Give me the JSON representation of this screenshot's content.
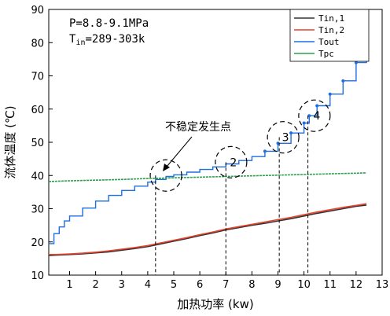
{
  "chart_data": {
    "type": "line",
    "xlabel": "加热功率 (kw)",
    "ylabel": "流体温度 (℃)",
    "xlim": [
      0.2,
      13
    ],
    "ylim": [
      10,
      90
    ],
    "xticks": [
      1,
      2,
      3,
      4,
      5,
      6,
      7,
      8,
      9,
      10,
      11,
      12,
      13
    ],
    "yticks": [
      10,
      20,
      30,
      40,
      50,
      60,
      70,
      80,
      90
    ],
    "conditions": {
      "pressure": "P=8.8-9.1MPa",
      "tin_prefix": "T",
      "tin_sub": "in",
      "tin_range": "=289-303k"
    },
    "legend_position": "top-right",
    "series": [
      {
        "name": "Tin,1",
        "color": "#333333",
        "x": [
          0.2,
          0.5,
          1,
          1.5,
          2,
          2.5,
          3,
          3.5,
          4,
          4.5,
          5,
          5.5,
          6,
          6.5,
          7,
          7.5,
          8,
          8.5,
          9,
          9.5,
          10,
          10.5,
          11,
          11.5,
          12,
          12.4
        ],
        "y": [
          15.9,
          16.0,
          16.2,
          16.4,
          16.7,
          17.0,
          17.5,
          18.0,
          18.6,
          19.4,
          20.2,
          21.0,
          21.9,
          22.7,
          23.6,
          24.3,
          25.0,
          25.6,
          26.3,
          27.0,
          27.8,
          28.6,
          29.3,
          30.0,
          30.7,
          31.1
        ]
      },
      {
        "name": "Tin,2",
        "color": "#e8412c",
        "x": [
          0.2,
          0.5,
          1,
          1.5,
          2,
          2.5,
          3,
          3.5,
          4,
          4.5,
          5,
          5.5,
          6,
          6.5,
          7,
          7.5,
          8,
          8.5,
          9,
          9.5,
          10,
          10.5,
          11,
          11.5,
          12,
          12.4
        ],
        "y": [
          16.2,
          16.2,
          16.4,
          16.6,
          16.9,
          17.3,
          17.8,
          18.3,
          18.9,
          19.7,
          20.5,
          21.3,
          22.2,
          23.0,
          23.9,
          24.6,
          25.3,
          26.0,
          26.7,
          27.4,
          28.2,
          29.0,
          29.7,
          30.4,
          31.0,
          31.5
        ]
      },
      {
        "name": "Tout",
        "color": "#1f6fe0",
        "x": [
          0.2,
          0.4,
          0.6,
          0.8,
          1,
          1.5,
          2,
          2.5,
          3,
          3.5,
          4,
          4.3,
          4.7,
          5,
          5.5,
          6,
          6.5,
          7,
          7.5,
          8,
          8.5,
          9,
          9.5,
          10,
          10.2,
          10.5,
          11,
          11.5,
          12,
          12.4
        ],
        "y": [
          19.5,
          22.5,
          24.5,
          26.3,
          27.8,
          30.2,
          32.3,
          34.0,
          35.5,
          36.8,
          38.0,
          38.8,
          39.7,
          40.2,
          41.0,
          41.8,
          42.6,
          43.5,
          44.5,
          45.7,
          47.3,
          49.7,
          52.8,
          55.8,
          58.0,
          61.0,
          64.5,
          68.5,
          74.0,
          82.5
        ]
      },
      {
        "name": "Tpc",
        "color": "#2ca24c",
        "x": [
          0.2,
          1,
          2,
          3,
          4,
          5,
          6,
          7,
          8,
          9,
          10,
          11,
          12,
          12.4
        ],
        "y": [
          38.2,
          38.4,
          38.6,
          38.8,
          39.1,
          39.3,
          39.5,
          39.7,
          39.9,
          40.1,
          40.3,
          40.5,
          40.7,
          40.8
        ]
      }
    ],
    "annotations": {
      "instability_label": "不稳定发生点",
      "points": [
        {
          "label": "",
          "x": 4.7,
          "y": 40.0,
          "guide_x": 4.3
        },
        {
          "label": "2",
          "x": 7.2,
          "y": 44.0,
          "guide_x": 7.0
        },
        {
          "label": "3",
          "x": 9.2,
          "y": 51.5,
          "guide_x": 9.05
        },
        {
          "label": "4",
          "x": 10.4,
          "y": 58.0,
          "guide_x": 10.15
        }
      ]
    }
  }
}
